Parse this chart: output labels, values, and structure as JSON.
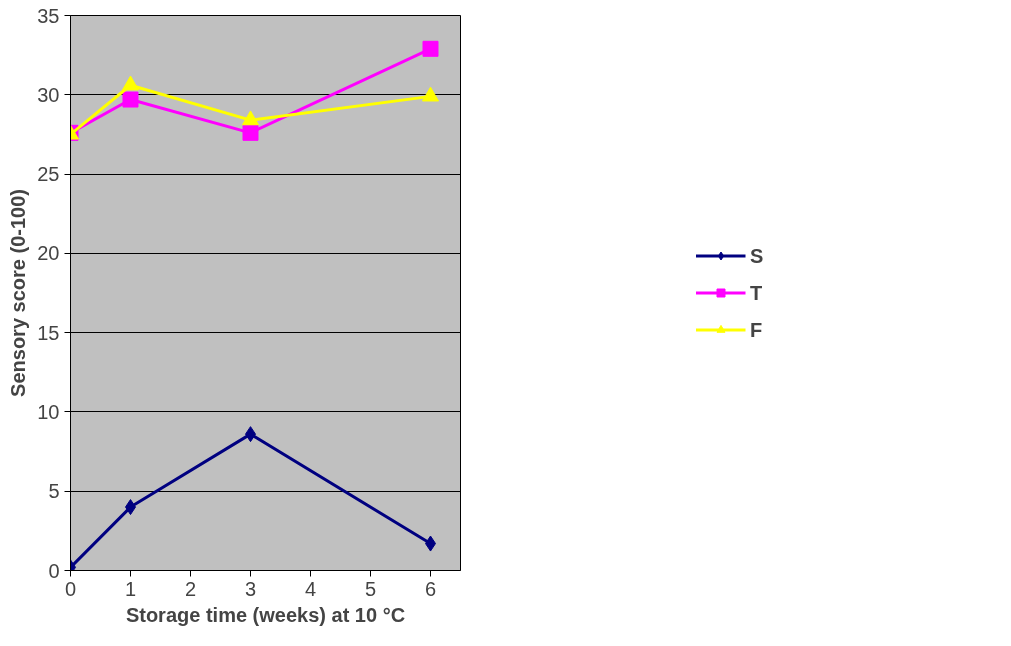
{
  "chart_data": {
    "type": "line",
    "xlabel": "Storage time (weeks) at 10 °C",
    "ylabel": "Sensory score (0-100)",
    "x": [
      0,
      1,
      3,
      6
    ],
    "series": [
      {
        "name": "S",
        "color": "#000080",
        "marker": "diamond",
        "values": [
          0.2,
          4.0,
          8.6,
          1.7
        ]
      },
      {
        "name": "T",
        "color": "#ff00ff",
        "marker": "square",
        "values": [
          27.6,
          29.7,
          27.6,
          32.9
        ]
      },
      {
        "name": "F",
        "color": "#ffff00",
        "marker": "triangle",
        "values": [
          27.5,
          30.6,
          28.4,
          29.9
        ]
      }
    ],
    "xlim": [
      0,
      6.5
    ],
    "xticks": [
      0,
      1,
      2,
      3,
      4,
      5,
      6
    ],
    "ylim": [
      0,
      35
    ],
    "yticks": [
      0,
      5,
      10,
      15,
      20,
      25,
      30,
      35
    ],
    "grid": "y",
    "legend": "right",
    "line_style": "solid"
  }
}
